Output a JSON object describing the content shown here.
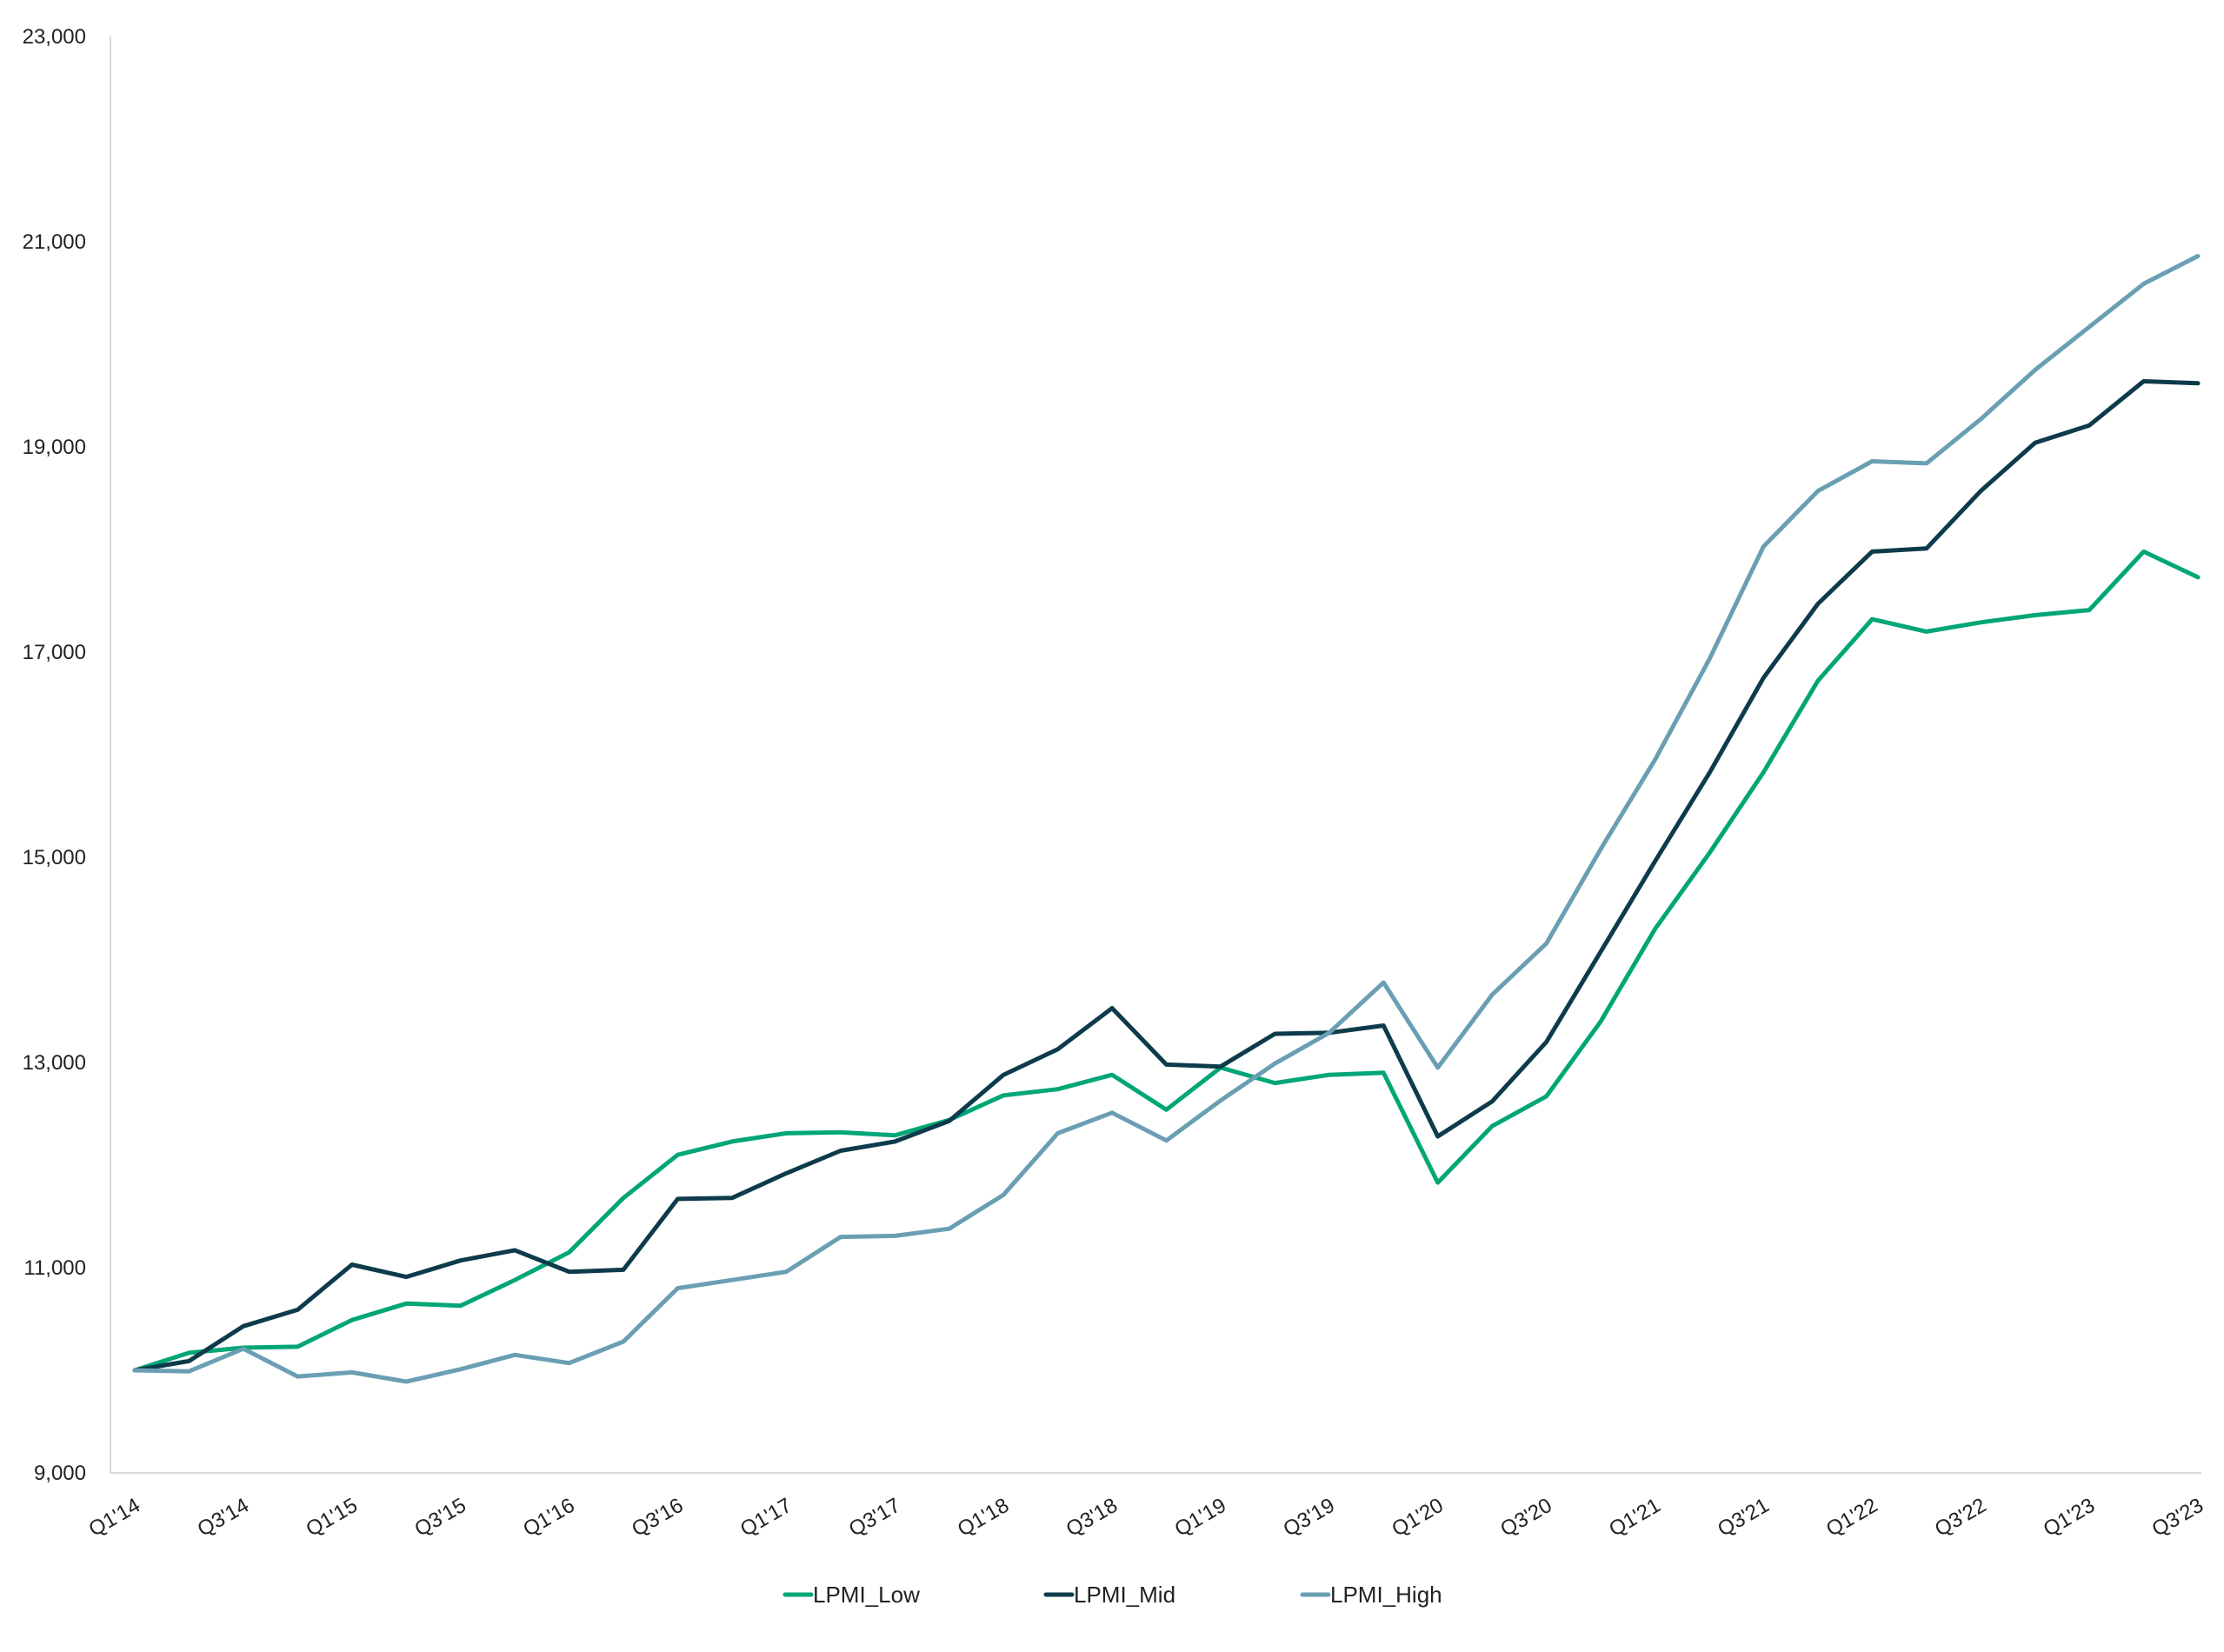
{
  "chart_data": {
    "type": "line",
    "title": "",
    "xlabel": "",
    "ylabel": "",
    "ylim": [
      9000,
      23000
    ],
    "y_ticks": [
      9000,
      11000,
      13000,
      15000,
      17000,
      19000,
      21000,
      23000
    ],
    "y_tick_labels": [
      "9,000",
      "11,000",
      "13,000",
      "15,000",
      "17,000",
      "19,000",
      "21,000",
      "23,000"
    ],
    "x": [
      "Q1'14",
      "Q2'14",
      "Q3'14",
      "Q4'14",
      "Q1'15",
      "Q2'15",
      "Q3'15",
      "Q4'15",
      "Q1'16",
      "Q2'16",
      "Q3'16",
      "Q4'16",
      "Q1'17",
      "Q2'17",
      "Q3'17",
      "Q4'17",
      "Q1'18",
      "Q2'18",
      "Q3'18",
      "Q4'18",
      "Q1'19",
      "Q2'19",
      "Q3'19",
      "Q4'19",
      "Q1'20",
      "Q2'20",
      "Q3'20",
      "Q4'20",
      "Q1'21",
      "Q2'21",
      "Q3'21",
      "Q4'21",
      "Q1'22",
      "Q2'22",
      "Q3'22",
      "Q4'22",
      "Q1'23",
      "Q2'23",
      "Q3'23"
    ],
    "x_tick_labels": [
      "Q1'14",
      "Q3'14",
      "Q1'15",
      "Q3'15",
      "Q1'16",
      "Q3'16",
      "Q1'17",
      "Q3'17",
      "Q1'18",
      "Q3'18",
      "Q1'19",
      "Q3'19",
      "Q1'20",
      "Q3'20",
      "Q1'21",
      "Q3'21",
      "Q1'22",
      "Q3'22",
      "Q1'23",
      "Q3'23"
    ],
    "x_tick_every": 2,
    "grid": false,
    "legend_position": "bottom",
    "series": [
      {
        "name": "LPMI_Low",
        "color": "#00A676",
        "values": [
          10000,
          10170,
          10220,
          10230,
          10490,
          10650,
          10630,
          10880,
          11150,
          11680,
          12100,
          12230,
          12310,
          12320,
          12290,
          12440,
          12680,
          12740,
          12880,
          12540,
          12950,
          12800,
          12880,
          12900,
          11830,
          12380,
          12670,
          13400,
          14300,
          15040,
          15830,
          16720,
          17320,
          17200,
          17290,
          17360,
          17410,
          17980,
          17730
        ]
      },
      {
        "name": "LPMI_Mid",
        "color": "#0D3B4B",
        "values": [
          10000,
          10090,
          10430,
          10590,
          11030,
          10910,
          11070,
          11170,
          10960,
          10980,
          11670,
          11680,
          11920,
          12140,
          12230,
          12430,
          12880,
          13130,
          13530,
          12980,
          12960,
          13280,
          13290,
          13360,
          12280,
          12620,
          13200,
          14080,
          14960,
          15820,
          16750,
          17470,
          17980,
          18010,
          18570,
          19040,
          19210,
          19640,
          19620
        ]
      },
      {
        "name": "LPMI_High",
        "color": "#6A9FB3",
        "values": [
          10000,
          9990,
          10210,
          9940,
          9980,
          9890,
          10010,
          10150,
          10070,
          10280,
          10800,
          10880,
          10960,
          11300,
          11310,
          11380,
          11710,
          12310,
          12510,
          12240,
          12630,
          12990,
          13290,
          13780,
          12950,
          13660,
          14160,
          15080,
          15950,
          16930,
          18030,
          18570,
          18860,
          18840,
          19270,
          19750,
          20170,
          20590,
          20860
        ]
      }
    ]
  }
}
